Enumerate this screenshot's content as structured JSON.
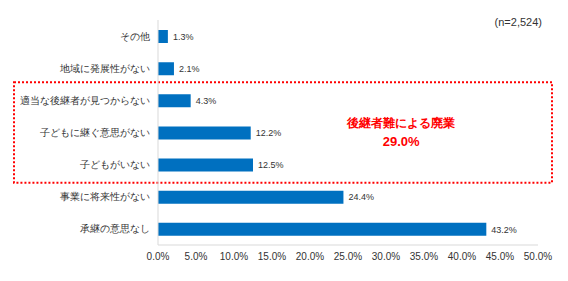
{
  "chart_data": {
    "type": "bar",
    "orientation": "horizontal",
    "categories": [
      "その他",
      "地域に発展性がない",
      "適当な後継者が見つからない",
      "子どもに継ぐ意思がない",
      "子どもがいない",
      "事業に将来性がない",
      "承継の意思なし"
    ],
    "values": [
      1.3,
      2.1,
      4.3,
      12.2,
      12.5,
      24.4,
      43.2
    ],
    "value_labels": [
      "1.3%",
      "2.1%",
      "4.3%",
      "12.2%",
      "12.5%",
      "24.4%",
      "43.2%"
    ],
    "color": "#0070c0",
    "xlim": [
      0,
      50
    ],
    "xticks": [
      {
        "value": 0,
        "label": "0.0%"
      },
      {
        "value": 5,
        "label": "5.0%"
      },
      {
        "value": 10,
        "label": "10.0%"
      },
      {
        "value": 15,
        "label": "15.0%"
      },
      {
        "value": 20,
        "label": "20.0%"
      },
      {
        "value": 25,
        "label": "25.0%"
      },
      {
        "value": 30,
        "label": "30.0%"
      },
      {
        "value": 35,
        "label": "35.0%"
      },
      {
        "value": 40,
        "label": "40.0%"
      },
      {
        "value": 45,
        "label": "45.0%"
      },
      {
        "value": 50,
        "label": "50.0%"
      }
    ],
    "grid": false,
    "data_labels": true,
    "annotations": [
      {
        "text": "(n=2,524)"
      },
      {
        "text": "後継者難による廃業",
        "value_label": "29.0%",
        "categories": [
          "適当な後継者が見つからない",
          "子どもに継ぐ意思がない",
          "子どもがいない"
        ]
      }
    ]
  }
}
